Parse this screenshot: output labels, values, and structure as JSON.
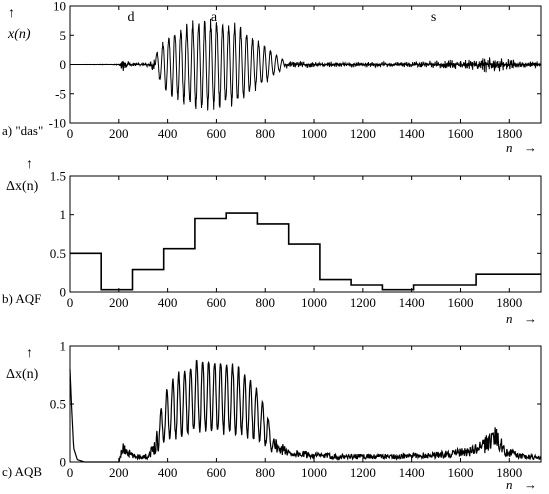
{
  "chart_data": [
    {
      "type": "line",
      "panel_label": "a) \"das\"",
      "ylabel": "x(n)",
      "ylabel_arrow": "↑",
      "xlabel": "n",
      "xlabel_arrow": "→",
      "xlim": [
        0,
        1930
      ],
      "ylim": [
        -10,
        10
      ],
      "xticks": [
        0,
        200,
        400,
        600,
        800,
        1000,
        1200,
        1400,
        1600,
        1800
      ],
      "yticks": [
        -10,
        -5,
        0,
        5,
        10
      ],
      "annotations": [
        {
          "text": "d",
          "x": 250
        },
        {
          "text": "a",
          "x": 590
        },
        {
          "text": "s",
          "x": 1490
        }
      ],
      "series": [
        {
          "style": "waveform",
          "envelope": [
            [
              0,
              0
            ],
            [
              200,
              0.05
            ],
            [
              215,
              1.3
            ],
            [
              225,
              0.6
            ],
            [
              280,
              0.25
            ],
            [
              320,
              0.35
            ],
            [
              350,
              1.5
            ],
            [
              390,
              4.2
            ],
            [
              430,
              5.4
            ],
            [
              480,
              6.4
            ],
            [
              530,
              7.0
            ],
            [
              580,
              7.0
            ],
            [
              630,
              6.8
            ],
            [
              680,
              6.3
            ],
            [
              720,
              5.0
            ],
            [
              760,
              4.0
            ],
            [
              800,
              3.0
            ],
            [
              840,
              1.6
            ],
            [
              880,
              0.6
            ],
            [
              950,
              0.5
            ],
            [
              1100,
              0.4
            ],
            [
              1300,
              0.4
            ],
            [
              1450,
              0.5
            ],
            [
              1550,
              0.7
            ],
            [
              1650,
              0.9
            ],
            [
              1700,
              1.2
            ],
            [
              1740,
              1.6
            ],
            [
              1780,
              0.9
            ],
            [
              1850,
              0.6
            ],
            [
              1930,
              0.5
            ]
          ]
        }
      ]
    },
    {
      "type": "line",
      "panel_label": "b) AQF",
      "ylabel": "Δx(n)",
      "ylabel_arrow": "↑",
      "xlabel": "n",
      "xlabel_arrow": "→",
      "xlim": [
        0,
        1930
      ],
      "ylim": [
        0,
        1.5
      ],
      "xticks": [
        0,
        200,
        400,
        600,
        800,
        1000,
        1200,
        1400,
        1600,
        1800
      ],
      "yticks": [
        0,
        0.5,
        1,
        1.5
      ],
      "series": [
        {
          "style": "step",
          "points": [
            [
              0,
              0.5
            ],
            [
              128,
              0.03
            ],
            [
              256,
              0.29
            ],
            [
              384,
              0.56
            ],
            [
              512,
              0.95
            ],
            [
              640,
              1.02
            ],
            [
              768,
              0.88
            ],
            [
              896,
              0.62
            ],
            [
              1024,
              0.16
            ],
            [
              1152,
              0.09
            ],
            [
              1280,
              0.03
            ],
            [
              1408,
              0.09
            ],
            [
              1664,
              0.23
            ],
            [
              1930,
              0.23
            ]
          ]
        }
      ]
    },
    {
      "type": "line",
      "panel_label": "c) AQB",
      "ylabel": "Δx(n)",
      "ylabel_arrow": "↑",
      "xlabel": "n",
      "xlabel_arrow": "→",
      "xlim": [
        0,
        1930
      ],
      "ylim": [
        0,
        1
      ],
      "xticks": [
        0,
        200,
        400,
        600,
        800,
        1000,
        1200,
        1400,
        1600,
        1800
      ],
      "yticks": [
        0,
        0.5,
        1
      ],
      "series": [
        {
          "style": "adaptive",
          "envelope": [
            [
              0,
              0.8
            ],
            [
              6,
              0.5
            ],
            [
              15,
              0.12
            ],
            [
              30,
              0.02
            ],
            [
              60,
              0.0
            ],
            [
              200,
              0.0
            ],
            [
              215,
              0.12
            ],
            [
              230,
              0.1
            ],
            [
              260,
              0.05
            ],
            [
              320,
              0.05
            ],
            [
              350,
              0.15
            ],
            [
              380,
              0.55
            ],
            [
              420,
              0.7
            ],
            [
              470,
              0.8
            ],
            [
              520,
              0.87
            ],
            [
              560,
              0.87
            ],
            [
              620,
              0.87
            ],
            [
              680,
              0.82
            ],
            [
              720,
              0.75
            ],
            [
              760,
              0.65
            ],
            [
              800,
              0.5
            ],
            [
              840,
              0.15
            ],
            [
              900,
              0.08
            ],
            [
              1000,
              0.06
            ],
            [
              1100,
              0.05
            ],
            [
              1200,
              0.05
            ],
            [
              1350,
              0.05
            ],
            [
              1450,
              0.06
            ],
            [
              1550,
              0.07
            ],
            [
              1650,
              0.1
            ],
            [
              1700,
              0.15
            ],
            [
              1740,
              0.25
            ],
            [
              1780,
              0.1
            ],
            [
              1850,
              0.05
            ],
            [
              1930,
              0.04
            ]
          ]
        }
      ]
    }
  ]
}
